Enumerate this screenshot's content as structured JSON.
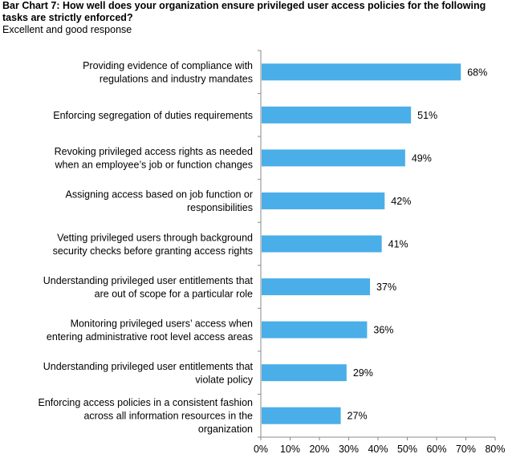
{
  "title": "Bar Chart 7: How well does your organization ensure privileged user access policies for the following tasks are strictly enforced?",
  "subtitle": "Excellent and good response",
  "chart_data": {
    "type": "bar",
    "orientation": "horizontal",
    "categories": [
      [
        "Providing evidence of compliance with",
        "regulations and industry mandates"
      ],
      [
        "Enforcing segregation of duties requirements"
      ],
      [
        "Revoking privileged access rights as needed",
        "when an employee’s job or function changes"
      ],
      [
        "Assigning access based on job function or",
        "responsibilities"
      ],
      [
        "Vetting privileged users through background",
        "security checks before granting access rights"
      ],
      [
        "Understanding privileged user entitlements that",
        "are out of scope for a particular role"
      ],
      [
        "Monitoring privileged users’ access when",
        "entering administrative root level access areas"
      ],
      [
        "Understanding privileged user entitlements that",
        "violate policy"
      ],
      [
        "Enforcing access policies in a consistent fashion",
        "across all information resources in the",
        "organization"
      ]
    ],
    "values": [
      68,
      51,
      49,
      42,
      41,
      37,
      36,
      29,
      27
    ],
    "value_labels": [
      "68%",
      "51%",
      "49%",
      "42%",
      "41%",
      "37%",
      "36%",
      "29%",
      "27%"
    ],
    "xlim": [
      0,
      80
    ],
    "xticks": [
      0,
      10,
      20,
      30,
      40,
      50,
      60,
      70,
      80
    ],
    "xtick_labels": [
      "0%",
      "10%",
      "20%",
      "30%",
      "40%",
      "50%",
      "60%",
      "70%",
      "80%"
    ],
    "bar_color": "#4aaee8",
    "grid": false
  }
}
